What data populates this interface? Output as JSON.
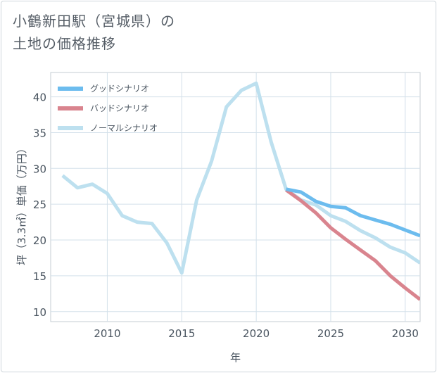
{
  "title_line1": "小鶴新田駅（宮城県）の",
  "title_line2": "土地の価格推移",
  "chart_data": {
    "type": "line",
    "title": "小鶴新田駅（宮城県）の土地の価格推移",
    "xlabel": "年",
    "ylabel": "坪（3.3㎡）単価（万円）",
    "xlim": [
      2006.2,
      2031
    ],
    "ylim": [
      8.6,
      43.4
    ],
    "xticks": [
      2010,
      2015,
      2020,
      2025,
      2030
    ],
    "yticks": [
      10,
      15,
      20,
      25,
      30,
      35,
      40
    ],
    "legend_position": "top-left",
    "series": [
      {
        "name": "グッドシナリオ",
        "color": "#6cbcee",
        "x": [
          2022,
          2023,
          2024,
          2025,
          2026,
          2027,
          2028,
          2029,
          2030,
          2031
        ],
        "y": [
          27.1,
          26.7,
          25.4,
          24.7,
          24.5,
          23.4,
          22.8,
          22.2,
          21.4,
          20.6
        ]
      },
      {
        "name": "バッドシナリオ",
        "color": "#d9848e",
        "x": [
          2022,
          2023,
          2024,
          2025,
          2026,
          2027,
          2028,
          2029,
          2030,
          2031
        ],
        "y": [
          27.0,
          25.5,
          23.8,
          21.7,
          20.1,
          18.6,
          17.1,
          15.0,
          13.3,
          11.7
        ]
      },
      {
        "name": "ノーマルシナリオ",
        "color": "#bde0ef",
        "x": [
          2007,
          2008,
          2009,
          2010,
          2011,
          2012,
          2013,
          2014,
          2015,
          2016,
          2017,
          2018,
          2019,
          2020,
          2021,
          2022,
          2023,
          2024,
          2025,
          2026,
          2027,
          2028,
          2029,
          2030,
          2031
        ],
        "y": [
          29.0,
          27.3,
          27.8,
          26.5,
          23.4,
          22.5,
          22.3,
          19.6,
          15.4,
          25.6,
          31.0,
          38.6,
          40.9,
          41.9,
          33.7,
          27.1,
          25.6,
          24.9,
          23.4,
          22.6,
          21.3,
          20.3,
          19.0,
          18.2,
          16.8
        ]
      }
    ]
  }
}
